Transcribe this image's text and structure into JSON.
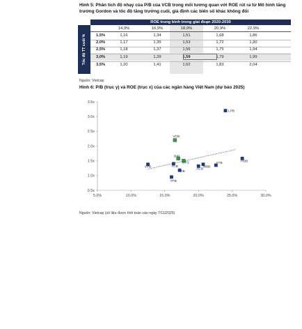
{
  "figure5": {
    "caption": "Hình 5: Phân tích độ nhạy của P/B của VCB trong mối tương quan với ROE rút ra từ Mô hình tăng trưởng Gordon và tốc độ tăng trưởng cuối, giả định các biến số khác không đổi",
    "header_band": "ROE trung bình trong giai đoạn 2020-2030",
    "row_axis_label": "Tốc độ TT cuối %",
    "columns": [
      "14,9%",
      "16,9%",
      "18,9%",
      "20,9%",
      "22,9%"
    ],
    "rows": [
      {
        "label": "1,5%",
        "values": [
          "1,16",
          "1,34",
          "1,51",
          "1,68",
          "1,86"
        ]
      },
      {
        "label": "2,0%",
        "values": [
          "1,17",
          "1,35",
          "1,53",
          "1,72",
          "1,90"
        ]
      },
      {
        "label": "2,5%",
        "values": [
          "1,18",
          "1,37",
          "1,56",
          "1,75",
          "1,94"
        ]
      },
      {
        "label": "3,0%",
        "values": [
          "1,19",
          "1,39",
          "1,59",
          "1,79",
          "1,99"
        ]
      },
      {
        "label": "3,5%",
        "values": [
          "1,20",
          "1,41",
          "1,62",
          "1,83",
          "2,04"
        ]
      }
    ],
    "source": "Nguồn: Vietcap"
  },
  "figure6": {
    "caption": "Hình 6: P/B (trục y) và ROE (trục x) của các ngân hàng Việt Nam (dự báo 2025)",
    "source": "Nguồn: Vietcap (số liệu được tính toán vào ngày 7/11/2025)"
  },
  "colors": {
    "table_header": "#1e2e54",
    "marker": "#1e3a78",
    "highlight_marker": "#3a9a4a",
    "highlight_box": "#1faa1f",
    "trendline": "#1e3a78"
  },
  "chart_data": {
    "type": "scatter",
    "title": "",
    "xlabel": "",
    "ylabel": "",
    "xlim": [
      5,
      30
    ],
    "ylim": [
      0.5,
      3.5
    ],
    "x_ticks": [
      "5.0%",
      "10.0%",
      "15.0%",
      "20.0%",
      "25.0%",
      "30.0%"
    ],
    "y_ticks": [
      "0.5x",
      "1.0x",
      "1.5x",
      "2.0x",
      "2.5x",
      "3.0x",
      "3.5x"
    ],
    "x_tick_values": [
      5,
      10,
      15,
      20,
      25,
      30
    ],
    "y_tick_values": [
      0.5,
      1.0,
      1.5,
      2.0,
      2.5,
      3.0,
      3.5
    ],
    "grid": false,
    "trendline": {
      "style": "dotted",
      "x": [
        12.5,
        25.5
      ],
      "y": [
        1.22,
        1.88
      ]
    },
    "points": [
      {
        "label": "LPB",
        "x": 24.0,
        "y": 3.2,
        "highlight": false
      },
      {
        "label": "VCB",
        "x": 16.5,
        "y": 2.2,
        "highlight": true
      },
      {
        "label": "BID",
        "x": 17.0,
        "y": 1.58,
        "highlight": true
      },
      {
        "label": "CTG",
        "x": 17.8,
        "y": 1.5,
        "highlight": true
      },
      {
        "label": "VPB",
        "x": 12.5,
        "y": 1.38,
        "highlight": false
      },
      {
        "label": "TCB",
        "x": 16.3,
        "y": 1.4,
        "highlight": false
      },
      {
        "label": "VIB",
        "x": 17.2,
        "y": 1.18,
        "highlight": false
      },
      {
        "label": "ACB",
        "x": 20.0,
        "y": 1.32,
        "highlight": false
      },
      {
        "label": "MBB",
        "x": 20.7,
        "y": 1.38,
        "highlight": false
      },
      {
        "label": "STB",
        "x": 22.6,
        "y": 1.35,
        "highlight": false
      },
      {
        "label": "HDB",
        "x": 26.5,
        "y": 1.58,
        "highlight": false
      },
      {
        "label": "TPB",
        "x": 16.0,
        "y": 0.95,
        "highlight": false
      }
    ]
  }
}
